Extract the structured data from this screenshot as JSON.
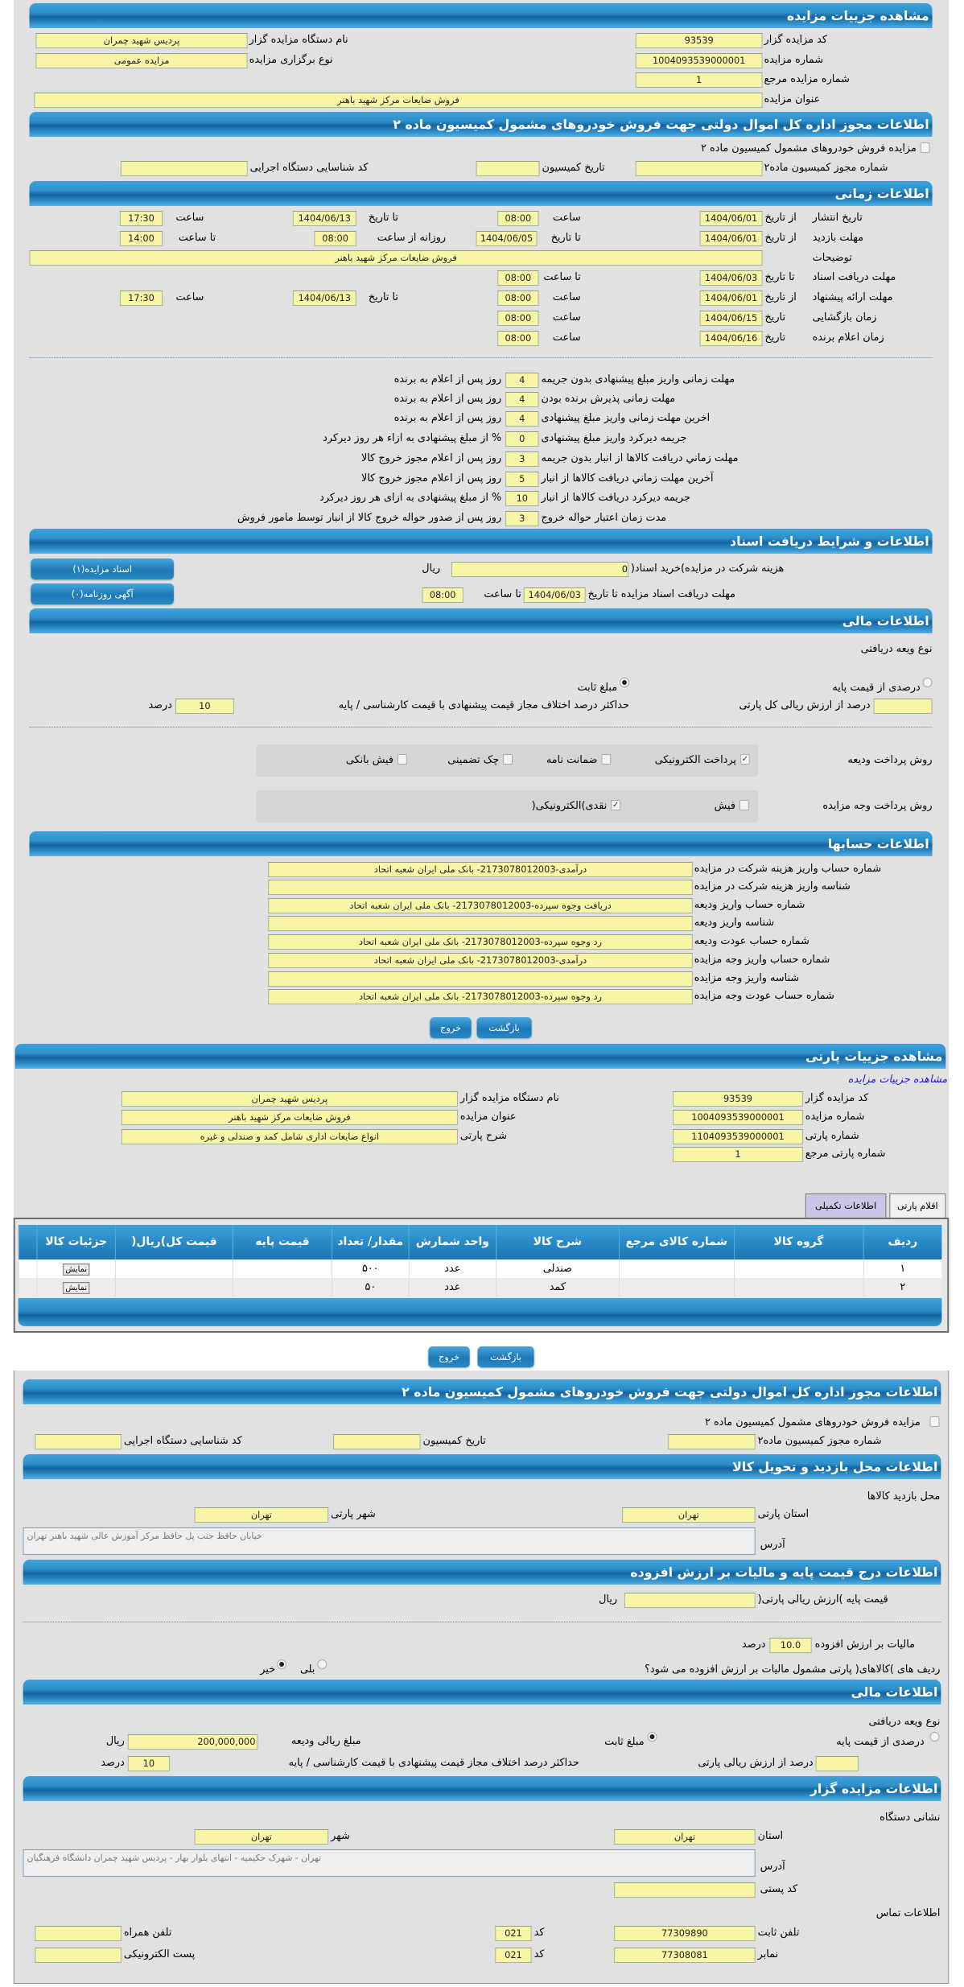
{
  "auction": {
    "header": "مشاهده جزییات مزایده",
    "org_code_label": "کد مزایده گزار",
    "org_code": "93539",
    "org_name_label": "نام دستگاه مزایده گزار",
    "org_name": "پردیس شهید چمران",
    "no_label": "شماره مزایده",
    "no": "1004093539000001",
    "type_label": "نوع برگزاری مزایده",
    "type": "مزایده عمومی",
    "ref_label": "شماره مزایده مرجع",
    "ref": "1",
    "title_label": "عنوان مزایده",
    "title": "فروش ضایعات مرکز شهید باهنر"
  },
  "permit": {
    "header": "اطلاعات مجوز اداره کل اموال دولتی جهت فروش خودروهای مشمول کمیسیون ماده ۲",
    "checkbox_label": "مزایده فروش خودروهای مشمول کمیسیون ماده ۲",
    "checked": false,
    "no_label": "شماره مجوز کمیسیون ماده۲",
    "no": "",
    "date_label": "تاریخ کمیسیون",
    "date": "",
    "exec_label": "کد شناسایی دستگاه اجرایی",
    "exec": ""
  },
  "timing": {
    "header": "اطلاعات زمانی",
    "from_date": "از تاریخ",
    "to_date": "تا تاریخ",
    "date": "تاریخ",
    "time": "ساعت",
    "to_time": "تا ساعت",
    "daily_from": "روزانه از ساعت",
    "desc_label": "توضیحات",
    "desc": "فروش ضایعات مرکز شهید باهنر",
    "publish": {
      "label": "تاریخ انتشار",
      "from": "1404/06/01",
      "from_time": "08:00",
      "to": "1404/06/13",
      "to_time": "17:30"
    },
    "visit": {
      "label": "مهلت بازدید",
      "from": "1404/06/01",
      "to": "1404/06/05",
      "daily_from": "08:00",
      "to_time": "14:00"
    },
    "docs": {
      "label": "مهلت دریافت اسناد",
      "to": "1404/06/03",
      "to_time": "08:00"
    },
    "offer": {
      "label": "مهلت ارائه پیشنهاد",
      "from": "1404/06/01",
      "from_time": "08:00",
      "to": "1404/06/13",
      "to_time": "17:30"
    },
    "opening": {
      "label": "زمان بازگشایی",
      "date": "1404/06/15",
      "time": "08:00"
    },
    "winner": {
      "label": "زمان اعلام برنده",
      "date": "1404/06/16",
      "time": "08:00"
    }
  },
  "terms": [
    {
      "label": "مهلت زمانی واریز مبلغ پیشنهادی بدون جریمه",
      "value": "4",
      "suffix": "روز پس از اعلام به برنده"
    },
    {
      "label": "مهلت زمانی پذیرش برنده بودن",
      "value": "4",
      "suffix": "روز پس از اعلام به برنده"
    },
    {
      "label": "اخرین مهلت زمانی واریز مبلغ پیشنهادی",
      "value": "4",
      "suffix": "روز پس از اعلام به برنده"
    },
    {
      "label": "جریمه دیرکرد واریز مبلغ پیشنهادی",
      "value": "0",
      "suffix": "% از مبلغ پیشنهادی به ازاء هر روز دیرکرد"
    },
    {
      "label": "مهلت زماني دريافت کالاها از انبار بدون جريمه",
      "value": "3",
      "suffix": "روز پس از اعلام مجوز خروج کالا"
    },
    {
      "label": "آخرين مهلت زماني دريافت کالاها از انبار",
      "value": "5",
      "suffix": "روز پس از اعلام مجوز خروج کالا"
    },
    {
      "label": "جريمه ديرکرد دريافت کالاها از انبار",
      "value": "10",
      "suffix": "% از مبلغ پیشنهادی به ازای هر روز دیرکرد"
    },
    {
      "label": "مدت زمان اعتبار حواله خروج",
      "value": "3",
      "suffix": "روز پس از صدور حواله خروج کالا از انبار توسط مامور فروش"
    }
  ],
  "docs": {
    "header": "اطلاعات و شرایط دریافت اسناد",
    "fee_label": "هزینه شرکت در مزایده)خرید اسناد(",
    "fee": "0",
    "fee_unit": "ریال",
    "deadline_label": "مهلت دریافت اسناد مزایده تا تاریخ",
    "deadline_date": "1404/06/03",
    "time_label": "تا ساعت",
    "deadline_time": "08:00",
    "btn_docs": "اسناد مزایده(۱)",
    "btn_ads": "آگهی روزنامه(۰)"
  },
  "finance": {
    "header": "اطلاعات مالی",
    "deposit_type": "نوع ویعه دریافتی",
    "opt_percent": "درصدی از قیمت پایه",
    "opt_fixed": "مبلغ ثابت",
    "selected": "مبلغ ثابت",
    "percent_label": "درصد از ارزش ریالی کل پارتی",
    "percent": "",
    "maxdiff_label": "حداکثر درصد اختلاف مجاز قیمت پیشنهادی با قیمت کارشناسی / پایه",
    "maxdiff": "10",
    "unit": "درصد",
    "deposit_pay_label": "روش پرداخت ودیعه",
    "deposit_pay": [
      {
        "label": "پرداخت الکترونیکی",
        "checked": true
      },
      {
        "label": "ضمانت نامه",
        "checked": false
      },
      {
        "label": "چک تضمینی",
        "checked": false
      },
      {
        "label": "فیش بانکی",
        "checked": false
      }
    ],
    "amount_pay_label": "روش پرداخت وجه مزایده",
    "amount_pay": [
      {
        "label": "فیش",
        "checked": false
      },
      {
        "label": "نقدی)الکترونیکی(",
        "checked": true
      }
    ]
  },
  "accounts": {
    "header": "اطلاعات حسابها",
    "rows": [
      {
        "label": "شماره حساب واریز هزینه شرکت در مزایده",
        "value": "درآمدی-2173078012003- بانک ملی ایران شعبه اتحاد"
      },
      {
        "label": "شناسه واریز هزینه شرکت در مزایده",
        "value": ""
      },
      {
        "label": "شماره حساب واریز ودیعه",
        "value": "دریافت وجوه سپرده-2173078012003- بانک ملی ایران شعبه اتحاد"
      },
      {
        "label": "شناسه واریز ودیعه",
        "value": ""
      },
      {
        "label": "شماره حساب عودت ودیعه",
        "value": "رد وجوه سپرده-2173078012003- بانک ملی ایران شعبه اتحاد"
      },
      {
        "label": "شماره حساب واریز وجه مزایده",
        "value": "درآمدی-2173078012003- بانک ملی ایران شعبه اتحاد"
      },
      {
        "label": "شناسه واریز وجه مزایده",
        "value": ""
      },
      {
        "label": "شماره حساب عودت وجه مزایده",
        "value": "رد وجوه سپرده-2173078012003- بانک ملی ایران شعبه اتحاد"
      }
    ]
  },
  "buttons": {
    "back": "بازگشت",
    "exit": "خروج"
  },
  "party": {
    "header": "مشاهده جزییات پارتی",
    "auction_link": "مشاهده جزییات مزایده",
    "org_code_label": "کد مزایده گزار",
    "org_code": "93539",
    "org_name_label": "نام دستگاه مزایده گزار",
    "org_name": "پردیس شهید چمران",
    "auction_no_label": "شماره مزایده",
    "auction_no": "1004093539000001",
    "title_label": "عنوان مزایده",
    "title": "فروش ضایعات مرکز شهید باهنر",
    "party_no_label": "شماره پارتی",
    "party_no": "1104093539000001",
    "desc_label": "شرح پارتی",
    "desc": "انواع ضایعات اداری شامل کمد و صندلی و غیره",
    "ref_label": "شماره پارتی مرجع",
    "ref": "1",
    "tabs": [
      {
        "label": "اقلام پارتی",
        "active": false
      },
      {
        "label": "اطلاعات تکمیلی",
        "active": true
      }
    ],
    "columns": [
      "ردیف",
      "گروه کالا",
      "شماره کالای مرجع",
      "شرح کالا",
      "واحد شمارش",
      "مقدار/ تعداد",
      "قیمت پایه",
      "قیمت کل)ریال(",
      "جزئیات کالا",
      ""
    ],
    "rows": [
      [
        "۱",
        "",
        "",
        "صندلی",
        "عدد",
        "۵۰۰",
        "",
        "",
        "نمایش",
        ""
      ],
      [
        "۲",
        "",
        "",
        "کمد",
        "عدد",
        "۵۰",
        "",
        "",
        "نمایش",
        ""
      ]
    ]
  },
  "permit2": {
    "header": "اطلاعات مجوز اداره کل اموال دولتی جهت فروش خودروهای مشمول کمیسیون ماده ۲",
    "checkbox_label": "مزایده فروش خودروهای مشمول کمیسیون ماده ۲",
    "no_label": "شماره مجوز کمیسیون ماده۲",
    "no": "",
    "date_label": "تاریخ کمیسیون",
    "date": "",
    "exec_label": "کد شناسایی دستگاه اجرایی",
    "exec": ""
  },
  "location": {
    "header": "اطلاعات محل بازدید و تحویل کالا",
    "subtitle": "محل بازدید کالاها",
    "province_label": "استان پارتی",
    "province": "تهران",
    "city_label": "شهر پارتی",
    "city": "تهران",
    "address_label": "آدرس",
    "address": "خیابان حافظ جنب پل حافظ مرکز آموزش عالی شهید باهنر تهران"
  },
  "tax": {
    "header": "اطلاعات درج قیمت پایه و مالیات بر ارزش افزوده",
    "base_label": "قیمت پایه )ارزش ریالی پارتی(",
    "base": "",
    "base_unit": "ریال",
    "vat_label": "مالیات بر ارزش افزوده",
    "vat": "10.0",
    "vat_unit": "درصد",
    "question": "ردیف های )کالاهای( پارتی مشمول مالیات بر ارزش افزوده می شود؟",
    "yes": "بلی",
    "no": "خیر",
    "selected": "خیر"
  },
  "finance2": {
    "header": "اطلاعات مالی",
    "deposit_type": "نوع ویعه دریافتی",
    "opt_percent": "درصدی از قیمت پایه",
    "opt_fixed": "مبلغ ثابت",
    "selected": "مبلغ ثابت",
    "amount_label": "مبلغ ریالی ودیعه",
    "amount": "200,000,000",
    "amount_unit": "ریال",
    "percent_label": "درصد از ارزش ریالی پارتی",
    "percent": "",
    "maxdiff_label": "حداکثر درصد اختلاف مجاز قیمت پیشنهادی با قیمت کارشناسی / پایه",
    "maxdiff": "10",
    "unit": "درصد"
  },
  "org": {
    "header": "اطلاعات مزایده گزار",
    "address_title": "نشانی دستگاه",
    "province_label": "استان",
    "province": "تهران",
    "city_label": "شهر",
    "city": "تهران",
    "address_label": "آدرس",
    "address": "تهران - شهرک حکیمیه - انتهای بلوار بهار - پردیس شهید چمران دانشگاه فرهنگیان",
    "postal_label": "کد پستی",
    "postal": "",
    "contact_title": "اطلاعات تماس",
    "phone_label": "تلفن ثابت",
    "phone": "77309890",
    "code_label": "کد",
    "phone_code": "021",
    "fax_label": "نمابر",
    "fax": "77308081",
    "fax_code": "021",
    "mobile_label": "تلفن همراه",
    "mobile": "",
    "email_label": "پست الکترونیکی",
    "email": ""
  }
}
